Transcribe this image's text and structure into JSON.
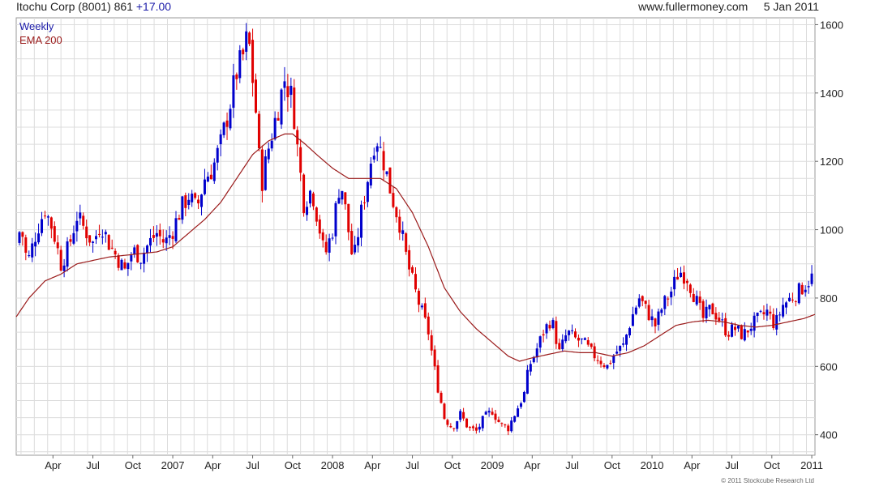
{
  "header": {
    "ticker": "Itochu Corp (8001) 861",
    "change": "+17.00",
    "site": "www.fullermoney.com",
    "date": "5 Jan 2011"
  },
  "copyright": "© 2011 Stockcube Research Ltd",
  "colors": {
    "up": "#0000cc",
    "down": "#e00000",
    "ema": "#9a1a1a",
    "grid": "#dcdcdc"
  },
  "chart_data": {
    "type": "candlestick",
    "legend": [
      "Weekly",
      "EMA 200"
    ],
    "ylim": [
      340,
      1620
    ],
    "y_ticks": [
      400,
      600,
      800,
      1000,
      1200,
      1400,
      1600
    ],
    "x_ticks": [
      {
        "label": "Apr",
        "at": 0.8
      },
      {
        "label": "Jul",
        "at": 1.05
      },
      {
        "label": "Oct",
        "at": 1.3
      },
      {
        "label": "2007",
        "at": 1.55
      },
      {
        "label": "Apr",
        "at": 1.8
      },
      {
        "label": "Jul",
        "at": 2.05
      },
      {
        "label": "Oct",
        "at": 2.3
      },
      {
        "label": "2008",
        "at": 2.55
      },
      {
        "label": "Apr",
        "at": 2.8
      },
      {
        "label": "Jul",
        "at": 3.05
      },
      {
        "label": "Oct",
        "at": 3.3
      },
      {
        "label": "2009",
        "at": 3.55
      },
      {
        "label": "Apr",
        "at": 3.8
      },
      {
        "label": "Jul",
        "at": 4.05
      },
      {
        "label": "Oct",
        "at": 4.3
      },
      {
        "label": "2010",
        "at": 4.55
      },
      {
        "label": "Apr",
        "at": 4.8
      },
      {
        "label": "Jul",
        "at": 5.05
      },
      {
        "label": "Oct",
        "at": 5.3
      },
      {
        "label": "2011",
        "at": 5.55
      }
    ],
    "x_range": [
      0.57,
      5.57
    ],
    "price_anchors": [
      [
        0.57,
        960
      ],
      [
        0.6,
        1010
      ],
      [
        0.64,
        900
      ],
      [
        0.7,
        1000
      ],
      [
        0.75,
        1060
      ],
      [
        0.8,
        1000
      ],
      [
        0.85,
        900
      ],
      [
        0.9,
        950
      ],
      [
        0.95,
        1040
      ],
      [
        1.0,
        1000
      ],
      [
        1.05,
        960
      ],
      [
        1.1,
        1020
      ],
      [
        1.15,
        960
      ],
      [
        1.2,
        920
      ],
      [
        1.25,
        880
      ],
      [
        1.3,
        940
      ],
      [
        1.35,
        920
      ],
      [
        1.4,
        960
      ],
      [
        1.45,
        990
      ],
      [
        1.5,
        960
      ],
      [
        1.55,
        1000
      ],
      [
        1.6,
        1060
      ],
      [
        1.65,
        1100
      ],
      [
        1.7,
        1060
      ],
      [
        1.75,
        1150
      ],
      [
        1.8,
        1180
      ],
      [
        1.85,
        1250
      ],
      [
        1.9,
        1350
      ],
      [
        1.95,
        1460
      ],
      [
        2.0,
        1520
      ],
      [
        2.02,
        1580
      ],
      [
        2.05,
        1440
      ],
      [
        2.08,
        1300
      ],
      [
        2.1,
        1120
      ],
      [
        2.15,
        1240
      ],
      [
        2.2,
        1340
      ],
      [
        2.25,
        1440
      ],
      [
        2.3,
        1380
      ],
      [
        2.33,
        1240
      ],
      [
        2.37,
        1080
      ],
      [
        2.42,
        1120
      ],
      [
        2.47,
        1000
      ],
      [
        2.5,
        920
      ],
      [
        2.55,
        1000
      ],
      [
        2.6,
        1150
      ],
      [
        2.63,
        1060
      ],
      [
        2.68,
        900
      ],
      [
        2.73,
        1050
      ],
      [
        2.77,
        1150
      ],
      [
        2.82,
        1280
      ],
      [
        2.87,
        1200
      ],
      [
        2.92,
        1100
      ],
      [
        2.97,
        1020
      ],
      [
        3.02,
        900
      ],
      [
        3.08,
        800
      ],
      [
        3.15,
        700
      ],
      [
        3.2,
        560
      ],
      [
        3.25,
        450
      ],
      [
        3.3,
        420
      ],
      [
        3.35,
        460
      ],
      [
        3.4,
        420
      ],
      [
        3.45,
        410
      ],
      [
        3.5,
        450
      ],
      [
        3.55,
        470
      ],
      [
        3.6,
        430
      ],
      [
        3.65,
        420
      ],
      [
        3.7,
        470
      ],
      [
        3.75,
        520
      ],
      [
        3.78,
        600
      ],
      [
        3.82,
        640
      ],
      [
        3.87,
        700
      ],
      [
        3.92,
        740
      ],
      [
        3.97,
        640
      ],
      [
        4.02,
        700
      ],
      [
        4.07,
        680
      ],
      [
        4.12,
        670
      ],
      [
        4.17,
        640
      ],
      [
        4.22,
        620
      ],
      [
        4.27,
        600
      ],
      [
        4.32,
        640
      ],
      [
        4.37,
        660
      ],
      [
        4.42,
        740
      ],
      [
        4.47,
        800
      ],
      [
        4.52,
        760
      ],
      [
        4.57,
        720
      ],
      [
        4.62,
        780
      ],
      [
        4.67,
        820
      ],
      [
        4.72,
        880
      ],
      [
        4.77,
        860
      ],
      [
        4.82,
        800
      ],
      [
        4.87,
        740
      ],
      [
        4.92,
        770
      ],
      [
        4.97,
        740
      ],
      [
        5.02,
        700
      ],
      [
        5.07,
        710
      ],
      [
        5.12,
        690
      ],
      [
        5.17,
        720
      ],
      [
        5.22,
        740
      ],
      [
        5.27,
        760
      ],
      [
        5.32,
        720
      ],
      [
        5.37,
        780
      ],
      [
        5.42,
        800
      ],
      [
        5.47,
        820
      ],
      [
        5.52,
        845
      ],
      [
        5.55,
        861
      ]
    ],
    "ema_anchors": [
      [
        0.57,
        745
      ],
      [
        0.65,
        800
      ],
      [
        0.75,
        850
      ],
      [
        0.85,
        870
      ],
      [
        0.95,
        900
      ],
      [
        1.05,
        910
      ],
      [
        1.15,
        920
      ],
      [
        1.25,
        925
      ],
      [
        1.35,
        930
      ],
      [
        1.45,
        935
      ],
      [
        1.55,
        950
      ],
      [
        1.65,
        990
      ],
      [
        1.75,
        1030
      ],
      [
        1.85,
        1080
      ],
      [
        1.95,
        1150
      ],
      [
        2.05,
        1220
      ],
      [
        2.15,
        1260
      ],
      [
        2.25,
        1280
      ],
      [
        2.3,
        1280
      ],
      [
        2.38,
        1250
      ],
      [
        2.45,
        1220
      ],
      [
        2.55,
        1180
      ],
      [
        2.65,
        1150
      ],
      [
        2.75,
        1150
      ],
      [
        2.85,
        1150
      ],
      [
        2.95,
        1120
      ],
      [
        3.05,
        1050
      ],
      [
        3.15,
        950
      ],
      [
        3.25,
        830
      ],
      [
        3.35,
        760
      ],
      [
        3.45,
        710
      ],
      [
        3.55,
        670
      ],
      [
        3.65,
        630
      ],
      [
        3.72,
        615
      ],
      [
        3.8,
        625
      ],
      [
        3.9,
        635
      ],
      [
        4.0,
        645
      ],
      [
        4.1,
        640
      ],
      [
        4.2,
        640
      ],
      [
        4.3,
        630
      ],
      [
        4.4,
        640
      ],
      [
        4.5,
        660
      ],
      [
        4.6,
        690
      ],
      [
        4.7,
        720
      ],
      [
        4.8,
        730
      ],
      [
        4.9,
        735
      ],
      [
        5.0,
        730
      ],
      [
        5.1,
        720
      ],
      [
        5.2,
        715
      ],
      [
        5.3,
        720
      ],
      [
        5.4,
        730
      ],
      [
        5.5,
        740
      ],
      [
        5.57,
        752
      ]
    ]
  }
}
